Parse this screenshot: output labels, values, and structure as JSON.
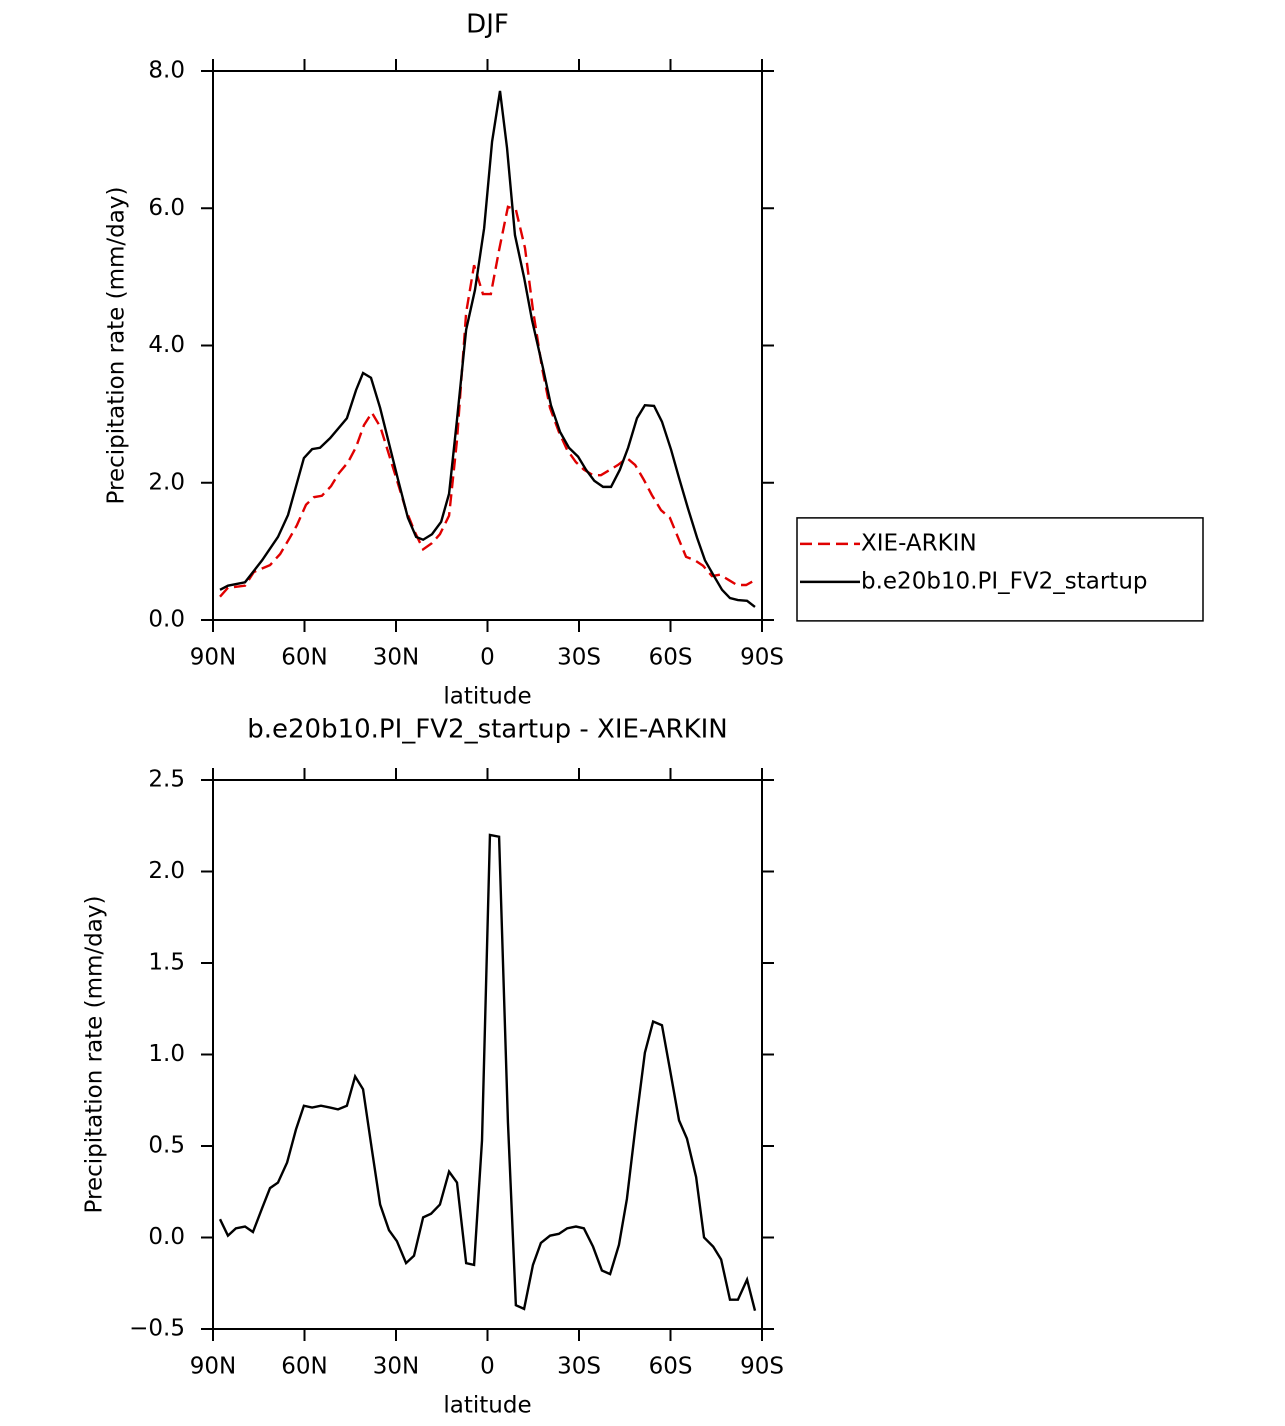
{
  "chart_data": [
    {
      "type": "line",
      "title": "DJF",
      "xlabel": "latitude",
      "ylabel": "Precipitation rate (mm/day)",
      "xlim": [
        90,
        -90
      ],
      "xticks": [
        {
          "value": 90,
          "label": "90N"
        },
        {
          "value": 60,
          "label": "60N"
        },
        {
          "value": 30,
          "label": "30N"
        },
        0,
        {
          "value": -30,
          "label": "30S"
        },
        {
          "value": -60,
          "label": "60S"
        },
        {
          "value": -90,
          "label": "90S"
        }
      ],
      "ylim": [
        0,
        8
      ],
      "yticks": [
        {
          "value": 0,
          "label": "0.0"
        },
        {
          "value": 2,
          "label": "2.0"
        },
        {
          "value": 4,
          "label": "4.0"
        },
        {
          "value": 6,
          "label": "6.0"
        },
        {
          "value": 8,
          "label": "8.0"
        }
      ],
      "legend": "right",
      "series": [
        {
          "name": "XIE-ARKIN",
          "color": "#e00000",
          "dashed": true,
          "x": [
            87.7,
            85.1,
            79.5,
            76.6,
            71.3,
            68.0,
            64.8,
            62.5,
            59.5,
            56.9,
            54.3,
            51.3,
            48.7,
            45.7,
            43.1,
            40.5,
            37.9,
            35.1,
            32.3,
            29.3,
            26.7,
            23.8,
            21.1,
            18.2,
            15.6,
            12.6,
            10.0,
            7.0,
            4.4,
            1.5,
            -1.1,
            -3.8,
            -6.7,
            -9.3,
            -12.3,
            -14.9,
            -17.9,
            -20.5,
            -23.4,
            -26.1,
            -29.0,
            -31.6,
            -34.6,
            -37.2,
            -40.2,
            -42.8,
            -45.7,
            -48.4,
            -51.3,
            -53.9,
            -56.9,
            -59.8,
            -62.5,
            -65.1,
            -68.0,
            -70.7,
            -73.6,
            -76.2,
            -79.2,
            -81.8,
            -84.8,
            -87.7
          ],
          "values": [
            0.34,
            0.47,
            0.5,
            0.7,
            0.8,
            0.96,
            1.2,
            1.38,
            1.68,
            1.79,
            1.81,
            1.95,
            2.14,
            2.3,
            2.52,
            2.84,
            3.02,
            2.81,
            2.41,
            1.98,
            1.6,
            1.28,
            1.03,
            1.12,
            1.25,
            1.52,
            2.62,
            4.48,
            5.17,
            4.75,
            4.75,
            5.39,
            6.02,
            5.98,
            5.42,
            4.52,
            3.67,
            3.09,
            2.74,
            2.48,
            2.3,
            2.19,
            2.11,
            2.11,
            2.19,
            2.26,
            2.36,
            2.26,
            2.04,
            1.82,
            1.6,
            1.49,
            1.2,
            0.92,
            0.87,
            0.79,
            0.64,
            0.66,
            0.58,
            0.51,
            0.51,
            0.58
          ]
        },
        {
          "name": "b.e20b10.PI_FV2_startup",
          "color": "#000000",
          "dashed": false,
          "x": [
            87.7,
            85.1,
            79.5,
            73.9,
            68.7,
            65.4,
            60.2,
            57.5,
            54.9,
            51.6,
            46.1,
            43.1,
            40.8,
            38.2,
            35.2,
            29.3,
            26.1,
            23.4,
            21.1,
            18.2,
            15.2,
            12.6,
            10.0,
            7.0,
            4.1,
            1.1,
            -1.5,
            -4.1,
            -6.4,
            -9.0,
            -12.0,
            -14.6,
            -18.2,
            -20.8,
            -23.8,
            -26.7,
            -29.7,
            -32.3,
            -35.0,
            -37.9,
            -40.5,
            -43.4,
            -46.1,
            -49.0,
            -51.6,
            -54.6,
            -57.2,
            -60.2,
            -62.8,
            -65.7,
            -68.7,
            -71.3,
            -74.0,
            -76.9,
            -79.5,
            -82.1,
            -85.1,
            -87.7
          ],
          "values": [
            0.44,
            0.5,
            0.55,
            0.87,
            1.21,
            1.53,
            2.36,
            2.49,
            2.51,
            2.65,
            2.94,
            3.35,
            3.6,
            3.53,
            3.09,
            2.04,
            1.49,
            1.21,
            1.17,
            1.25,
            1.43,
            1.84,
            2.92,
            4.23,
            4.81,
            5.71,
            6.97,
            7.71,
            6.88,
            5.61,
            4.99,
            4.37,
            3.67,
            3.13,
            2.74,
            2.51,
            2.38,
            2.19,
            2.03,
            1.94,
            1.94,
            2.19,
            2.51,
            2.94,
            3.13,
            3.12,
            2.89,
            2.48,
            2.07,
            1.63,
            1.2,
            0.87,
            0.66,
            0.44,
            0.32,
            0.29,
            0.28,
            0.19
          ]
        }
      ]
    },
    {
      "type": "line",
      "title": "b.e20b10.PI_FV2_startup - XIE-ARKIN",
      "xlabel": "latitude",
      "ylabel": "Precipitation rate (mm/day)",
      "xlim": [
        90,
        -90
      ],
      "xticks": [
        {
          "value": 90,
          "label": "90N"
        },
        {
          "value": 60,
          "label": "60N"
        },
        {
          "value": 30,
          "label": "30N"
        },
        0,
        {
          "value": -30,
          "label": "30S"
        },
        {
          "value": -60,
          "label": "60S"
        },
        {
          "value": -90,
          "label": "90S"
        }
      ],
      "ylim": [
        -0.5,
        2.5
      ],
      "yticks": [
        {
          "value": -0.5,
          "label": "−0.5"
        },
        {
          "value": 0,
          "label": "0.0"
        },
        0.5,
        {
          "value": 1,
          "label": "1.0"
        },
        1.5,
        {
          "value": 2,
          "label": "2.0"
        },
        2.5
      ],
      "series": [
        {
          "color": "#000000",
          "dashed": false,
          "x": [
            87.7,
            85.1,
            82.5,
            79.5,
            76.9,
            73.9,
            71.3,
            68.7,
            65.7,
            62.8,
            60.2,
            57.5,
            54.6,
            51.6,
            49.0,
            46.1,
            43.4,
            40.8,
            37.9,
            35.2,
            32.3,
            29.7,
            26.7,
            24.1,
            21.1,
            18.5,
            15.6,
            12.6,
            10.0,
            7.0,
            4.4,
            1.8,
            -0.8,
            -3.8,
            -6.7,
            -9.3,
            -12.0,
            -14.9,
            -17.5,
            -20.5,
            -23.4,
            -26.1,
            -29.0,
            -31.6,
            -34.6,
            -37.5,
            -40.2,
            -43.1,
            -45.7,
            -48.7,
            -51.6,
            -54.3,
            -57.2,
            -59.8,
            -62.8,
            -65.4,
            -68.4,
            -71.0,
            -74.0,
            -76.6,
            -79.5,
            -82.1,
            -85.1,
            -87.7
          ],
          "values": [
            0.1,
            0.01,
            0.05,
            0.06,
            0.03,
            0.16,
            0.27,
            0.3,
            0.41,
            0.59,
            0.72,
            0.71,
            0.72,
            0.71,
            0.7,
            0.72,
            0.88,
            0.81,
            0.48,
            0.18,
            0.04,
            -0.02,
            -0.14,
            -0.1,
            0.11,
            0.13,
            0.18,
            0.36,
            0.3,
            -0.14,
            -0.15,
            0.53,
            2.2,
            2.19,
            0.63,
            -0.37,
            -0.39,
            -0.15,
            -0.03,
            0.01,
            0.02,
            0.05,
            0.06,
            0.05,
            -0.05,
            -0.18,
            -0.2,
            -0.04,
            0.21,
            0.63,
            1.01,
            1.18,
            1.16,
            0.92,
            0.64,
            0.54,
            0.33,
            0.0,
            -0.05,
            -0.12,
            -0.34,
            -0.34,
            -0.23,
            -0.4
          ]
        }
      ]
    }
  ]
}
